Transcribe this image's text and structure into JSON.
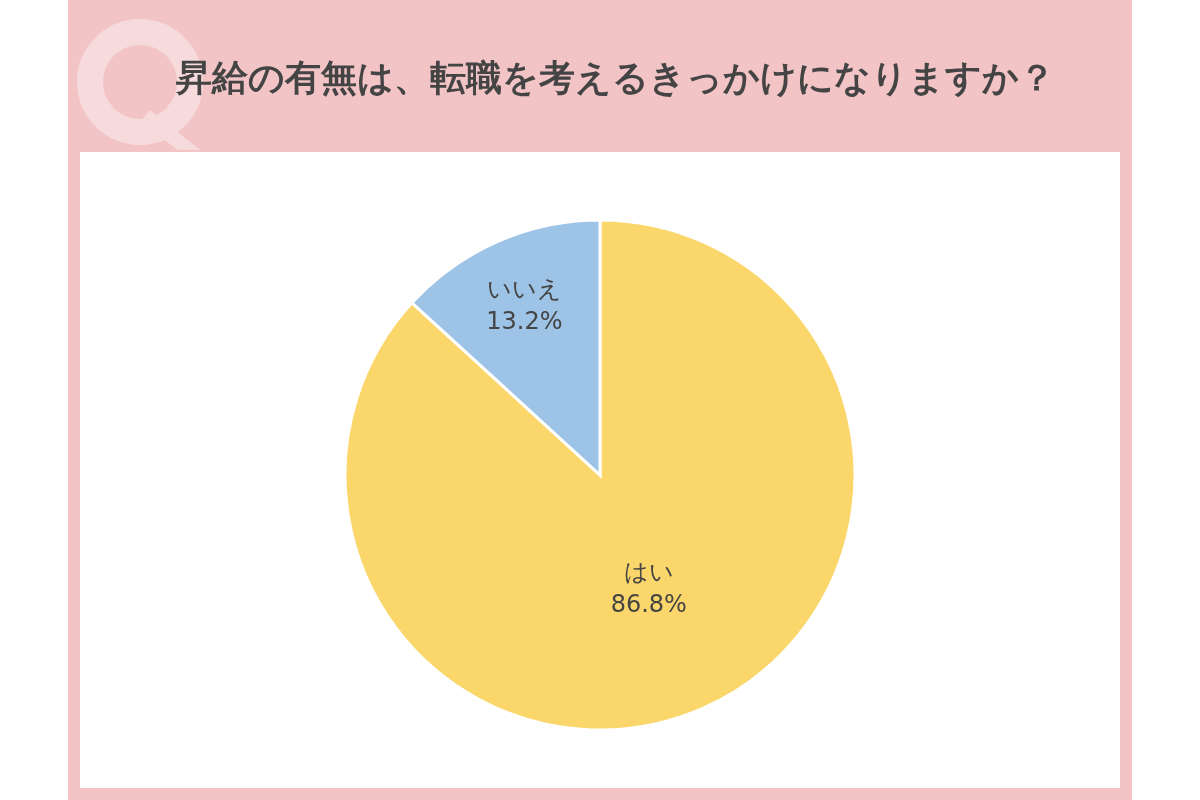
{
  "chart_data": {
    "type": "pie",
    "title": "昇給の有無は、転職を考えるきっかけになりますか？",
    "categories": [
      "はい",
      "いいえ"
    ],
    "values": [
      86.8,
      13.2
    ],
    "colors": [
      "#fbd66b",
      "#9dc3e6"
    ],
    "value_labels": [
      "86.8%",
      "13.2%"
    ]
  }
}
